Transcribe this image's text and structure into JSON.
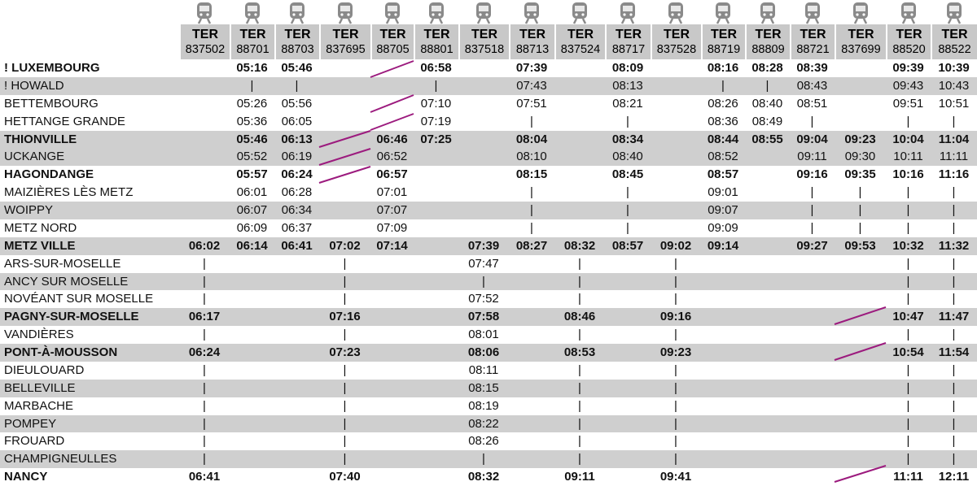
{
  "trains": [
    {
      "type": "TER",
      "number": "837502"
    },
    {
      "type": "TER",
      "number": "88701"
    },
    {
      "type": "TER",
      "number": "88703"
    },
    {
      "type": "TER",
      "number": "837695"
    },
    {
      "type": "TER",
      "number": "88705"
    },
    {
      "type": "TER",
      "number": "88801"
    },
    {
      "type": "TER",
      "number": "837518"
    },
    {
      "type": "TER",
      "number": "88713"
    },
    {
      "type": "TER",
      "number": "837524"
    },
    {
      "type": "TER",
      "number": "88717"
    },
    {
      "type": "TER",
      "number": "837528"
    },
    {
      "type": "TER",
      "number": "88719"
    },
    {
      "type": "TER",
      "number": "88809"
    },
    {
      "type": "TER",
      "number": "88721"
    },
    {
      "type": "TER",
      "number": "837699"
    },
    {
      "type": "TER",
      "number": "88520"
    },
    {
      "type": "TER",
      "number": "88522"
    }
  ],
  "rows": [
    {
      "station": "! LUXEMBOURG",
      "times": [
        null,
        "05:16",
        "05:46",
        null,
        null,
        "06:58",
        null,
        "07:39",
        null,
        "08:09",
        null,
        "08:16",
        "08:28",
        "08:39",
        null,
        "09:39",
        "10:39"
      ]
    },
    {
      "station": "! HOWALD",
      "times": [
        null,
        "|",
        "|",
        null,
        null,
        "|",
        null,
        "07:43",
        null,
        "08:13",
        null,
        "|",
        "|",
        "08:43",
        null,
        "09:43",
        "10:43"
      ]
    },
    {
      "station": "BETTEMBOURG",
      "times": [
        null,
        "05:26",
        "05:56",
        null,
        null,
        "07:10",
        null,
        "07:51",
        null,
        "08:21",
        null,
        "08:26",
        "08:40",
        "08:51",
        null,
        "09:51",
        "10:51"
      ]
    },
    {
      "station": "HETTANGE GRANDE",
      "times": [
        null,
        "05:36",
        "06:05",
        null,
        null,
        "07:19",
        null,
        "|",
        null,
        "|",
        null,
        "08:36",
        "08:49",
        "|",
        null,
        "|",
        "|"
      ]
    },
    {
      "station": "THIONVILLE",
      "times": [
        null,
        "05:46",
        "06:13",
        null,
        "06:46",
        "07:25",
        null,
        "08:04",
        null,
        "08:34",
        null,
        "08:44",
        "08:55",
        "09:04",
        "09:23",
        "10:04",
        "11:04"
      ]
    },
    {
      "station": "UCKANGE",
      "times": [
        null,
        "05:52",
        "06:19",
        null,
        "06:52",
        null,
        null,
        "08:10",
        null,
        "08:40",
        null,
        "08:52",
        null,
        "09:11",
        "09:30",
        "10:11",
        "11:11"
      ]
    },
    {
      "station": "HAGONDANGE",
      "times": [
        null,
        "05:57",
        "06:24",
        null,
        "06:57",
        null,
        null,
        "08:15",
        null,
        "08:45",
        null,
        "08:57",
        null,
        "09:16",
        "09:35",
        "10:16",
        "11:16"
      ]
    },
    {
      "station": "MAIZIÈRES LÈS METZ",
      "times": [
        null,
        "06:01",
        "06:28",
        null,
        "07:01",
        null,
        null,
        "|",
        null,
        "|",
        null,
        "09:01",
        null,
        "|",
        "|",
        "|",
        "|"
      ]
    },
    {
      "station": "WOIPPY",
      "times": [
        null,
        "06:07",
        "06:34",
        null,
        "07:07",
        null,
        null,
        "|",
        null,
        "|",
        null,
        "09:07",
        null,
        "|",
        "|",
        "|",
        "|"
      ]
    },
    {
      "station": "METZ NORD",
      "times": [
        null,
        "06:09",
        "06:37",
        null,
        "07:09",
        null,
        null,
        "|",
        null,
        "|",
        null,
        "09:09",
        null,
        "|",
        "|",
        "|",
        "|"
      ]
    },
    {
      "station": "METZ VILLE",
      "times": [
        "06:02",
        "06:14",
        "06:41",
        "07:02",
        "07:14",
        null,
        "07:39",
        "08:27",
        "08:32",
        "08:57",
        "09:02",
        "09:14",
        null,
        "09:27",
        "09:53",
        "10:32",
        "11:32"
      ]
    },
    {
      "station": "ARS-SUR-MOSELLE",
      "times": [
        "|",
        null,
        null,
        "|",
        null,
        null,
        "07:47",
        null,
        "|",
        null,
        "|",
        null,
        null,
        null,
        null,
        "|",
        "|"
      ]
    },
    {
      "station": "ANCY SUR MOSELLE",
      "times": [
        "|",
        null,
        null,
        "|",
        null,
        null,
        "|",
        null,
        "|",
        null,
        "|",
        null,
        null,
        null,
        null,
        "|",
        "|"
      ]
    },
    {
      "station": "NOVÉANT SUR MOSELLE",
      "times": [
        "|",
        null,
        null,
        "|",
        null,
        null,
        "07:52",
        null,
        "|",
        null,
        "|",
        null,
        null,
        null,
        null,
        "|",
        "|"
      ]
    },
    {
      "station": "PAGNY-SUR-MOSELLE",
      "times": [
        "06:17",
        null,
        null,
        "07:16",
        null,
        null,
        "07:58",
        null,
        "08:46",
        null,
        "09:16",
        null,
        null,
        null,
        null,
        "10:47",
        "11:47"
      ]
    },
    {
      "station": "VANDIÈRES",
      "times": [
        "|",
        null,
        null,
        "|",
        null,
        null,
        "08:01",
        null,
        "|",
        null,
        "|",
        null,
        null,
        null,
        null,
        "|",
        "|"
      ]
    },
    {
      "station": "PONT-À-MOUSSON",
      "times": [
        "06:24",
        null,
        null,
        "07:23",
        null,
        null,
        "08:06",
        null,
        "08:53",
        null,
        "09:23",
        null,
        null,
        null,
        null,
        "10:54",
        "11:54"
      ]
    },
    {
      "station": "DIEULOUARD",
      "times": [
        "|",
        null,
        null,
        "|",
        null,
        null,
        "08:11",
        null,
        "|",
        null,
        "|",
        null,
        null,
        null,
        null,
        "|",
        "|"
      ]
    },
    {
      "station": "BELLEVILLE",
      "times": [
        "|",
        null,
        null,
        "|",
        null,
        null,
        "08:15",
        null,
        "|",
        null,
        "|",
        null,
        null,
        null,
        null,
        "|",
        "|"
      ]
    },
    {
      "station": "MARBACHE",
      "times": [
        "|",
        null,
        null,
        "|",
        null,
        null,
        "08:19",
        null,
        "|",
        null,
        "|",
        null,
        null,
        null,
        null,
        "|",
        "|"
      ]
    },
    {
      "station": "POMPEY",
      "times": [
        "|",
        null,
        null,
        "|",
        null,
        null,
        "08:22",
        null,
        "|",
        null,
        "|",
        null,
        null,
        null,
        null,
        "|",
        "|"
      ]
    },
    {
      "station": "FROUARD",
      "times": [
        "|",
        null,
        null,
        "|",
        null,
        null,
        "08:26",
        null,
        "|",
        null,
        "|",
        null,
        null,
        null,
        null,
        "|",
        "|"
      ]
    },
    {
      "station": "CHAMPIGNEULLES",
      "times": [
        "|",
        null,
        null,
        "|",
        null,
        null,
        "|",
        null,
        "|",
        null,
        "|",
        null,
        null,
        null,
        null,
        "|",
        "|"
      ]
    },
    {
      "station": "NANCY",
      "times": [
        "06:41",
        null,
        null,
        "07:40",
        null,
        null,
        "08:32",
        null,
        "09:11",
        null,
        "09:41",
        null,
        null,
        null,
        null,
        "11:11",
        "12:11"
      ]
    }
  ]
}
